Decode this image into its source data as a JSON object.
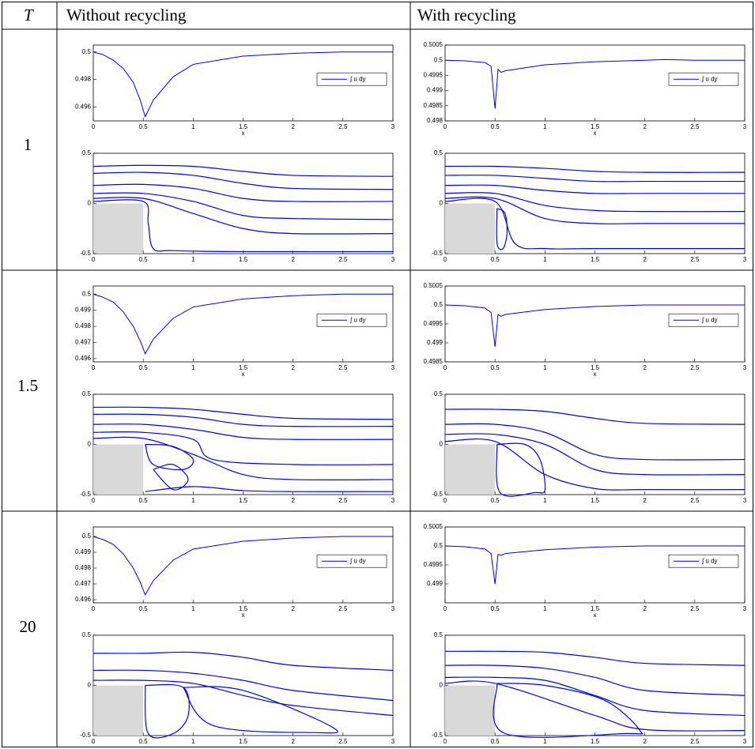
{
  "table": {
    "header": [
      "T",
      "Without recycling",
      "With recycling"
    ],
    "row_labels": [
      "1",
      "1.5",
      "20"
    ]
  },
  "chart_data": [
    {
      "type": "line",
      "xlabel": "x",
      "legend": "right",
      "xlim": [
        0,
        3
      ],
      "ylim": [
        0.495,
        0.5005
      ],
      "xticks": [
        0,
        0.5,
        1,
        1.5,
        2,
        2.5,
        3
      ],
      "yticks": [
        0.496,
        0.498,
        0.5
      ],
      "x": [
        0,
        0.1,
        0.2,
        0.3,
        0.4,
        0.47,
        0.52,
        0.6,
        0.8,
        1,
        1.5,
        2,
        2.5,
        3
      ],
      "series": [
        {
          "name": "∫ u dy",
          "color": "#0000ff",
          "values": [
            0.5,
            0.4998,
            0.4994,
            0.4988,
            0.4978,
            0.4965,
            0.4953,
            0.4965,
            0.4982,
            0.4991,
            0.4997,
            0.4999,
            0.5,
            0.5
          ]
        }
      ]
    },
    {
      "type": "streamline",
      "xlim": [
        0,
        3
      ],
      "ylim": [
        -0.5,
        0.5
      ],
      "xticks": [
        0,
        0.5,
        1,
        1.5,
        2,
        2.5,
        3
      ],
      "yticks": [
        -0.5,
        0,
        0.5
      ],
      "color": "#0000ff",
      "lines": [
        {
          "x": [
            0,
            0.5,
            1,
            1.5,
            2,
            3
          ],
          "y": [
            0.37,
            0.38,
            0.37,
            0.32,
            0.28,
            0.27
          ]
        },
        {
          "x": [
            0,
            0.5,
            1,
            1.5,
            2,
            3
          ],
          "y": [
            0.3,
            0.31,
            0.28,
            0.2,
            0.15,
            0.14
          ]
        },
        {
          "x": [
            0,
            0.5,
            1,
            1.5,
            2,
            3
          ],
          "y": [
            0.18,
            0.19,
            0.15,
            0.05,
            0.02,
            0.02
          ]
        },
        {
          "x": [
            0,
            0.5,
            1,
            1.5,
            2,
            3
          ],
          "y": [
            0.1,
            0.1,
            0.02,
            -0.12,
            -0.15,
            -0.16
          ]
        },
        {
          "x": [
            0,
            0.5,
            1,
            1.5,
            2,
            3
          ],
          "y": [
            0.05,
            0.05,
            -0.1,
            -0.25,
            -0.3,
            -0.3
          ]
        },
        {
          "x": [
            0,
            0.5,
            0.55,
            0.6,
            0.8,
            1.5,
            3
          ],
          "y": [
            0.02,
            0.02,
            -0.2,
            -0.45,
            -0.47,
            -0.48,
            -0.48
          ]
        }
      ]
    },
    {
      "type": "line",
      "xlabel": "x",
      "legend": "right",
      "xlim": [
        0,
        3
      ],
      "ylim": [
        0.498,
        0.5005
      ],
      "xticks": [
        0,
        0.5,
        1,
        1.5,
        2,
        2.5,
        3
      ],
      "yticks": [
        0.498,
        0.4985,
        0.499,
        0.4995,
        0.5,
        0.5005
      ],
      "x": [
        0,
        0.2,
        0.4,
        0.46,
        0.5,
        0.53,
        0.56,
        0.6,
        1,
        1.5,
        2,
        2.2,
        2.5,
        3
      ],
      "series": [
        {
          "name": "∫ u dy",
          "color": "#0000ff",
          "values": [
            0.5,
            0.49998,
            0.49992,
            0.4998,
            0.4984,
            0.4997,
            0.4996,
            0.49965,
            0.49985,
            0.49995,
            0.5,
            0.50002,
            0.5,
            0.5
          ]
        }
      ]
    },
    {
      "type": "streamline",
      "xlim": [
        0,
        3
      ],
      "ylim": [
        -0.5,
        0.5
      ],
      "xticks": [
        0,
        0.5,
        1,
        1.5,
        2,
        2.5,
        3
      ],
      "yticks": [
        -0.5,
        0,
        0.5
      ],
      "color": "#0000ff",
      "lines": [
        {
          "x": [
            0,
            0.5,
            1,
            1.5,
            2,
            3
          ],
          "y": [
            0.37,
            0.37,
            0.35,
            0.32,
            0.31,
            0.31
          ]
        },
        {
          "x": [
            0,
            0.5,
            1,
            1.5,
            2,
            3
          ],
          "y": [
            0.28,
            0.28,
            0.25,
            0.22,
            0.22,
            0.22
          ]
        },
        {
          "x": [
            0,
            0.5,
            1,
            1.5,
            2,
            3
          ],
          "y": [
            0.18,
            0.18,
            0.13,
            0.1,
            0.1,
            0.1
          ]
        },
        {
          "x": [
            0,
            0.5,
            1,
            1.5,
            2,
            3
          ],
          "y": [
            0.1,
            0.1,
            -0.02,
            -0.07,
            -0.08,
            -0.08
          ]
        },
        {
          "x": [
            0,
            0.5,
            1,
            1.5,
            2,
            3
          ],
          "y": [
            0.05,
            0.05,
            -0.15,
            -0.2,
            -0.2,
            -0.2
          ]
        },
        {
          "x": [
            0,
            0.5,
            0.7,
            1,
            1.5,
            3
          ],
          "y": [
            0.02,
            0.02,
            -0.4,
            -0.45,
            -0.45,
            -0.45
          ]
        },
        {
          "x": [
            0.52,
            0.6,
            0.62,
            0.58,
            0.52,
            0.52
          ],
          "y": [
            -0.05,
            -0.1,
            -0.3,
            -0.45,
            -0.4,
            -0.05
          ]
        }
      ]
    },
    {
      "type": "line",
      "xlabel": "x",
      "legend": "right",
      "xlim": [
        0,
        3
      ],
      "ylim": [
        0.4958,
        0.5005
      ],
      "xticks": [
        0,
        0.5,
        1,
        1.5,
        2,
        2.5,
        3
      ],
      "yticks": [
        0.496,
        0.497,
        0.498,
        0.499,
        0.5
      ],
      "x": [
        0,
        0.1,
        0.2,
        0.3,
        0.4,
        0.47,
        0.52,
        0.6,
        0.8,
        1,
        1.5,
        2,
        2.5,
        3
      ],
      "series": [
        {
          "name": "∫ u dy",
          "color": "#0000ff",
          "values": [
            0.5,
            0.4998,
            0.4995,
            0.4989,
            0.498,
            0.4971,
            0.4963,
            0.4972,
            0.4985,
            0.4992,
            0.4997,
            0.4999,
            0.5,
            0.5
          ]
        }
      ]
    },
    {
      "type": "streamline",
      "xlim": [
        0,
        3
      ],
      "ylim": [
        -0.5,
        0.5
      ],
      "xticks": [
        0,
        0.5,
        1,
        1.5,
        2,
        2.5,
        3
      ],
      "yticks": [
        -0.5,
        0,
        0.5
      ],
      "color": "#0000ff",
      "lines": [
        {
          "x": [
            0,
            0.5,
            1,
            1.5,
            2,
            3
          ],
          "y": [
            0.37,
            0.37,
            0.35,
            0.3,
            0.26,
            0.25
          ]
        },
        {
          "x": [
            0,
            0.5,
            1,
            1.5,
            2,
            3
          ],
          "y": [
            0.3,
            0.3,
            0.27,
            0.2,
            0.18,
            0.18
          ]
        },
        {
          "x": [
            0,
            0.5,
            1,
            1.5,
            2,
            3
          ],
          "y": [
            0.2,
            0.2,
            0.15,
            0.07,
            0.05,
            0.05
          ]
        },
        {
          "x": [
            0,
            0.5,
            1,
            1.2,
            2,
            3
          ],
          "y": [
            0.12,
            0.12,
            0.05,
            -0.15,
            -0.2,
            -0.2
          ]
        },
        {
          "x": [
            0,
            0.5,
            1,
            1.5,
            2,
            3
          ],
          "y": [
            0.06,
            0.06,
            -0.1,
            -0.3,
            -0.35,
            -0.35
          ]
        },
        {
          "x": [
            0.52,
            0.8,
            1,
            0.9,
            0.6,
            0.52
          ],
          "y": [
            0,
            -0.02,
            -0.15,
            -0.25,
            -0.2,
            0
          ]
        },
        {
          "x": [
            0.6,
            0.8,
            0.95,
            0.8,
            0.6
          ],
          "y": [
            -0.25,
            -0.2,
            -0.35,
            -0.45,
            -0.25
          ]
        },
        {
          "x": [
            0.52,
            1,
            1.5,
            2,
            3
          ],
          "y": [
            -0.47,
            -0.42,
            -0.46,
            -0.47,
            -0.47
          ]
        }
      ]
    },
    {
      "type": "line",
      "xlabel": "x",
      "legend": "right",
      "xlim": [
        0,
        3
      ],
      "ylim": [
        0.4985,
        0.5005
      ],
      "xticks": [
        0,
        0.5,
        1,
        1.5,
        2,
        2.5,
        3
      ],
      "yticks": [
        0.4985,
        0.499,
        0.4995,
        0.5,
        0.5005
      ],
      "x": [
        0,
        0.2,
        0.4,
        0.46,
        0.5,
        0.53,
        0.56,
        0.6,
        1,
        1.5,
        2,
        2.5,
        3
      ],
      "series": [
        {
          "name": "∫ u dy",
          "color": "#0000ff",
          "values": [
            0.5,
            0.49998,
            0.49992,
            0.4998,
            0.4989,
            0.49975,
            0.4997,
            0.49975,
            0.49988,
            0.49996,
            0.5,
            0.5,
            0.5
          ]
        }
      ]
    },
    {
      "type": "streamline",
      "xlim": [
        0,
        3
      ],
      "ylim": [
        -0.5,
        0.5
      ],
      "xticks": [
        0,
        0.5,
        1,
        1.5,
        2,
        2.5,
        3
      ],
      "yticks": [
        -0.5,
        0,
        0.5
      ],
      "color": "#0000ff",
      "lines": [
        {
          "x": [
            0,
            0.5,
            1,
            1.5,
            2,
            3
          ],
          "y": [
            0.35,
            0.35,
            0.33,
            0.26,
            0.21,
            0.2
          ]
        },
        {
          "x": [
            0,
            0.5,
            1,
            1.5,
            2,
            3
          ],
          "y": [
            0.2,
            0.2,
            0.12,
            -0.1,
            -0.15,
            -0.15
          ]
        },
        {
          "x": [
            0,
            0.5,
            1,
            1.5,
            2,
            3
          ],
          "y": [
            0.1,
            0.1,
            0,
            -0.25,
            -0.3,
            -0.3
          ]
        },
        {
          "x": [
            0,
            0.5,
            1,
            1.5,
            2,
            3
          ],
          "y": [
            0.03,
            0.03,
            -0.3,
            -0.44,
            -0.45,
            -0.45
          ]
        },
        {
          "x": [
            0.52,
            0.8,
            0.95,
            1,
            0.9,
            0.55,
            0.52
          ],
          "y": [
            0,
            0,
            -0.15,
            -0.45,
            -0.48,
            -0.48,
            0
          ]
        }
      ]
    },
    {
      "type": "line",
      "xlabel": "x",
      "legend": "right",
      "xlim": [
        0,
        3
      ],
      "ylim": [
        0.4958,
        0.5006
      ],
      "xticks": [
        0,
        0.5,
        1,
        1.5,
        2,
        2.5,
        3
      ],
      "yticks": [
        0.496,
        0.497,
        0.498,
        0.499,
        0.5
      ],
      "x": [
        0,
        0.1,
        0.2,
        0.3,
        0.4,
        0.47,
        0.52,
        0.6,
        0.8,
        1,
        1.5,
        2,
        2.5,
        3
      ],
      "series": [
        {
          "name": "∫ u dy",
          "color": "#0000ff",
          "values": [
            0.5,
            0.4998,
            0.4995,
            0.4989,
            0.498,
            0.4971,
            0.4963,
            0.4972,
            0.4985,
            0.4992,
            0.4997,
            0.4999,
            0.5,
            0.5
          ]
        }
      ]
    },
    {
      "type": "streamline",
      "xlim": [
        0,
        3
      ],
      "ylim": [
        -0.5,
        0.5
      ],
      "xticks": [
        0,
        0.5,
        1,
        1.5,
        2,
        2.5,
        3
      ],
      "yticks": [
        -0.5,
        0,
        0.5
      ],
      "color": "#0000ff",
      "lines": [
        {
          "x": [
            0,
            0.5,
            1,
            1.5,
            2,
            3
          ],
          "y": [
            0.32,
            0.32,
            0.33,
            0.28,
            0.2,
            0.15
          ]
        },
        {
          "x": [
            0,
            0.5,
            1,
            1.5,
            2,
            3
          ],
          "y": [
            0.15,
            0.15,
            0.12,
            0.05,
            -0.05,
            -0.15
          ]
        },
        {
          "x": [
            0,
            0.5,
            1,
            1.5,
            2,
            3
          ],
          "y": [
            0.05,
            0.05,
            0.02,
            -0.1,
            -0.2,
            -0.3
          ]
        },
        {
          "x": [
            0.52,
            0.9,
            0.95,
            0.8,
            0.55,
            0.52
          ],
          "y": [
            0,
            -0.02,
            -0.3,
            -0.48,
            -0.48,
            0
          ]
        },
        {
          "x": [
            0.9,
            1.5,
            2.4,
            2.2,
            1.2,
            0.9
          ],
          "y": [
            -0.02,
            -0.05,
            -0.42,
            -0.47,
            -0.4,
            -0.02
          ]
        }
      ]
    },
    {
      "type": "line",
      "xlabel": "x",
      "legend": "right",
      "xlim": [
        0,
        3
      ],
      "ylim": [
        0.4985,
        0.5005
      ],
      "xticks": [
        0,
        0.5,
        1,
        1.5,
        2,
        2.5,
        3
      ],
      "yticks": [
        0.499,
        0.4995,
        0.5,
        0.5005
      ],
      "x": [
        0,
        0.2,
        0.4,
        0.46,
        0.5,
        0.53,
        0.56,
        0.6,
        1,
        1.5,
        2,
        2.5,
        3
      ],
      "series": [
        {
          "name": "∫ u dy",
          "color": "#0000ff",
          "values": [
            0.5,
            0.49998,
            0.49992,
            0.4998,
            0.499,
            0.49978,
            0.49975,
            0.4998,
            0.4999,
            0.49997,
            0.5,
            0.5,
            0.5
          ]
        }
      ]
    },
    {
      "type": "streamline",
      "xlim": [
        0,
        3
      ],
      "ylim": [
        -0.5,
        0.5
      ],
      "xticks": [
        0,
        0.5,
        1,
        1.5,
        2,
        2.5,
        3
      ],
      "yticks": [
        -0.5,
        0,
        0.5
      ],
      "color": "#0000ff",
      "lines": [
        {
          "x": [
            0,
            0.5,
            1,
            1.5,
            2,
            3
          ],
          "y": [
            0.34,
            0.34,
            0.33,
            0.28,
            0.22,
            0.2
          ]
        },
        {
          "x": [
            0,
            0.5,
            1,
            1.5,
            2,
            3
          ],
          "y": [
            0.2,
            0.2,
            0.17,
            0.08,
            -0.05,
            -0.1
          ]
        },
        {
          "x": [
            0,
            0.5,
            1,
            1.5,
            2,
            3
          ],
          "y": [
            0.08,
            0.08,
            0.05,
            -0.1,
            -0.25,
            -0.3
          ]
        },
        {
          "x": [
            0.52,
            1,
            1.6,
            1.95,
            1.8,
            0.6,
            0.52
          ],
          "y": [
            0.02,
            0,
            -0.15,
            -0.45,
            -0.48,
            -0.48,
            0.02
          ]
        },
        {
          "x": [
            0,
            0.5,
            1.5,
            2,
            3
          ],
          "y": [
            0.02,
            0.02,
            -0.3,
            -0.44,
            -0.45
          ]
        }
      ]
    }
  ]
}
